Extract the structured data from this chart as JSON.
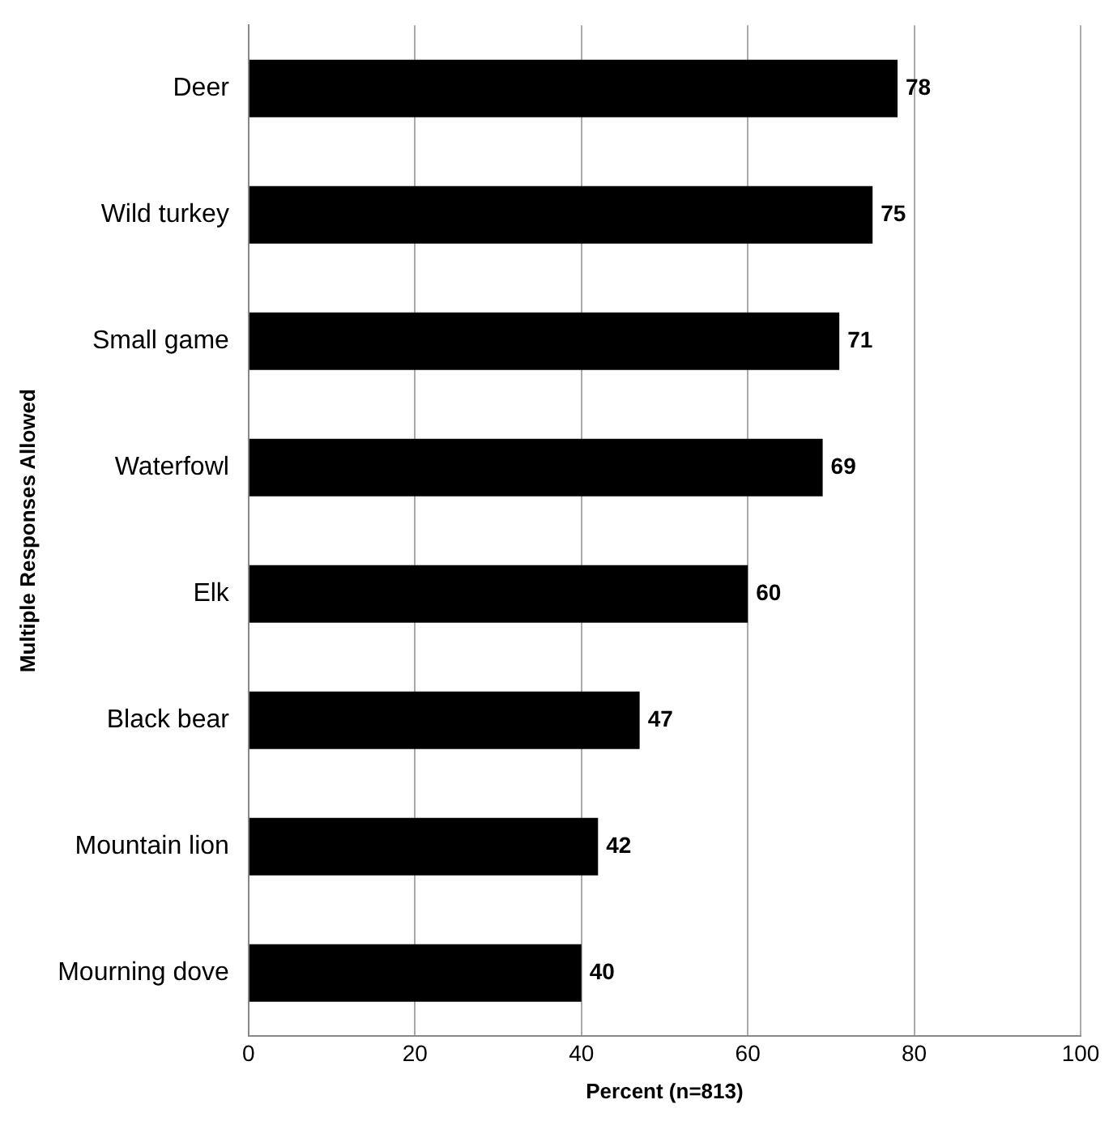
{
  "chart_data": {
    "type": "bar",
    "orientation": "horizontal",
    "xlabel": "Percent (n=813)",
    "ylabel": "Multiple Responses Allowed",
    "categories": [
      "Deer",
      "Wild turkey",
      "Small game",
      "Waterfowl",
      "Elk",
      "Black bear",
      "Mountain lion",
      "Mourning dove"
    ],
    "values": [
      78,
      75,
      71,
      69,
      60,
      47,
      42,
      40
    ],
    "color": "#000000",
    "xlim": [
      0,
      100
    ],
    "xticks": [
      0,
      20,
      40,
      60,
      80,
      100
    ],
    "grid": "x",
    "data_labels": true,
    "legend": false
  }
}
